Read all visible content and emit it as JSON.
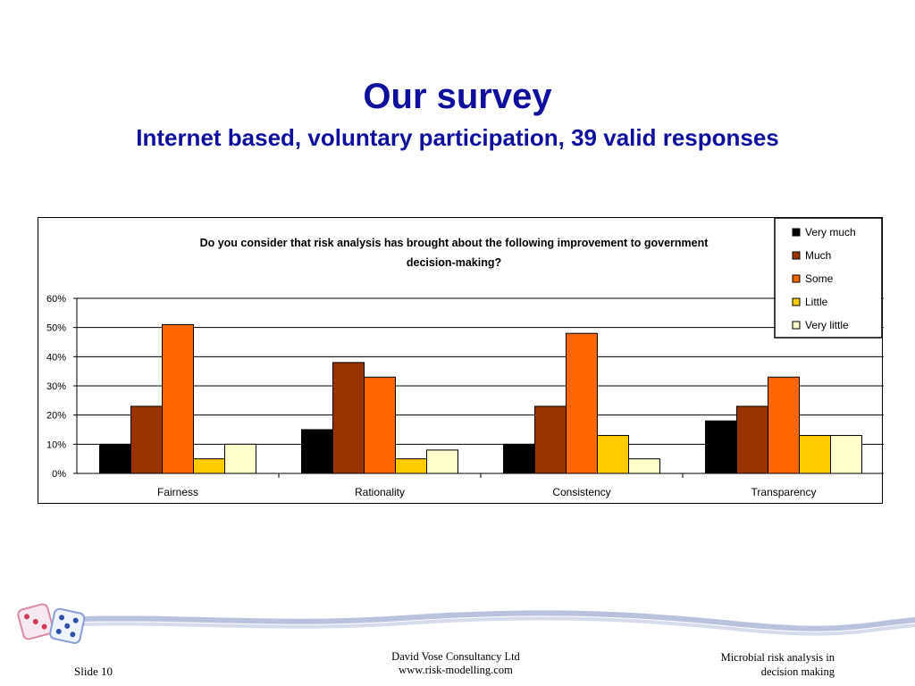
{
  "slide": {
    "title": "Our survey",
    "subtitle": "Internet based, voluntary participation, 39 valid responses"
  },
  "footer": {
    "slide_number": "Slide 10",
    "company": "David Vose Consultancy Ltd",
    "website": "www.risk-modelling.com",
    "topic_line1": "Microbial risk analysis in",
    "topic_line2": "decision making"
  },
  "colors": {
    "title": "#0f0f9e",
    "very_much": "#000000",
    "much": "#993300",
    "some": "#ff6600",
    "little": "#ffcc00",
    "very_little": "#ffffcc"
  },
  "chart_data": {
    "type": "bar",
    "title": "Do you consider that risk analysis has brought about the following improvement to government decision-making?",
    "categories": [
      "Fairness",
      "Rationality",
      "Consistency",
      "Transparency"
    ],
    "ylim": [
      0,
      60
    ],
    "yticks": [
      "0%",
      "10%",
      "20%",
      "30%",
      "40%",
      "50%",
      "60%"
    ],
    "grid": true,
    "legend_position": "top-right",
    "series": [
      {
        "name": "Very much",
        "color": "#000000",
        "values": [
          10,
          15,
          10,
          18
        ]
      },
      {
        "name": "Much",
        "color": "#993300",
        "values": [
          23,
          38,
          23,
          23
        ]
      },
      {
        "name": "Some",
        "color": "#ff6600",
        "values": [
          51,
          33,
          48,
          33
        ]
      },
      {
        "name": "Little",
        "color": "#ffcc00",
        "values": [
          5,
          5,
          13,
          13
        ]
      },
      {
        "name": "Very little",
        "color": "#ffffcc",
        "values": [
          10,
          8,
          5,
          13
        ]
      }
    ]
  }
}
